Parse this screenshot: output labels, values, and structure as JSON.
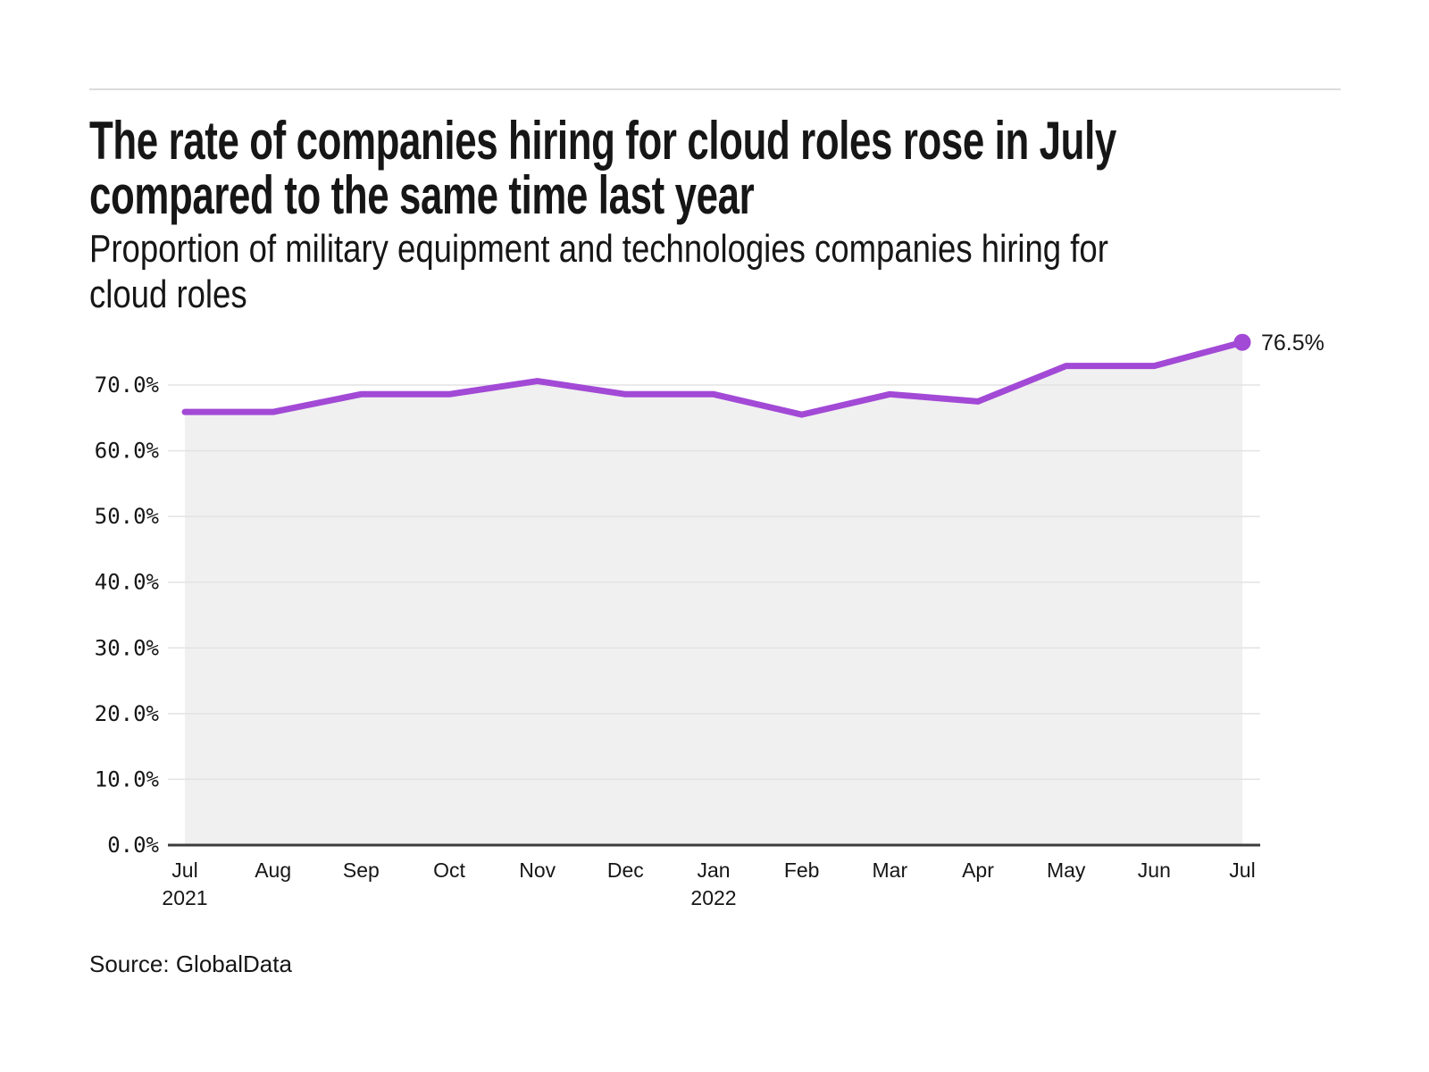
{
  "header": {
    "title_line1": "The rate of companies hiring for cloud roles rose in July",
    "title_line2": "compared to the same time last year",
    "subtitle_line1": "Proportion of military equipment and technologies companies hiring for",
    "subtitle_line2": "cloud roles"
  },
  "footer": {
    "source": "Source: GlobalData"
  },
  "chart_data": {
    "type": "area",
    "title": "The rate of companies hiring for cloud roles rose in July compared to the same time last year",
    "subtitle": "Proportion of military equipment and technologies companies hiring for cloud roles",
    "source": "Source: GlobalData",
    "categories": [
      "Jul 2021",
      "Aug 2021",
      "Sep 2021",
      "Oct 2021",
      "Nov 2021",
      "Dec 2021",
      "Jan 2022",
      "Feb 2022",
      "Mar 2022",
      "Apr 2022",
      "May 2022",
      "Jun 2022",
      "Jul 2022"
    ],
    "values": [
      65.9,
      65.9,
      68.6,
      68.6,
      70.6,
      68.6,
      68.6,
      65.5,
      68.6,
      67.5,
      72.9,
      72.9,
      76.5
    ],
    "unit": "%",
    "ylim": [
      0,
      80
    ],
    "grid": true,
    "legend": false,
    "end_label": "76.5%",
    "y_ticks": [
      {
        "value": 0,
        "label": "0.0%"
      },
      {
        "value": 10,
        "label": "10.0%"
      },
      {
        "value": 20,
        "label": "20.0%"
      },
      {
        "value": 30,
        "label": "30.0%"
      },
      {
        "value": 40,
        "label": "40.0%"
      },
      {
        "value": 50,
        "label": "50.0%"
      },
      {
        "value": 60,
        "label": "60.0%"
      },
      {
        "value": 70,
        "label": "70.0%"
      }
    ],
    "x_tick_labels": [
      {
        "month": "Jul",
        "year": "2021"
      },
      {
        "month": "Aug"
      },
      {
        "month": "Sep"
      },
      {
        "month": "Oct"
      },
      {
        "month": "Nov"
      },
      {
        "month": "Dec"
      },
      {
        "month": "Jan",
        "year": "2022"
      },
      {
        "month": "Feb"
      },
      {
        "month": "Mar"
      },
      {
        "month": "Apr"
      },
      {
        "month": "May"
      },
      {
        "month": "Jun"
      },
      {
        "month": "Jul"
      }
    ],
    "colors": {
      "line": "#A249D6",
      "area": "#F0F0F0",
      "grid": "#E3E3E3",
      "axis": "#3C3C3C",
      "text": "#161616"
    }
  }
}
